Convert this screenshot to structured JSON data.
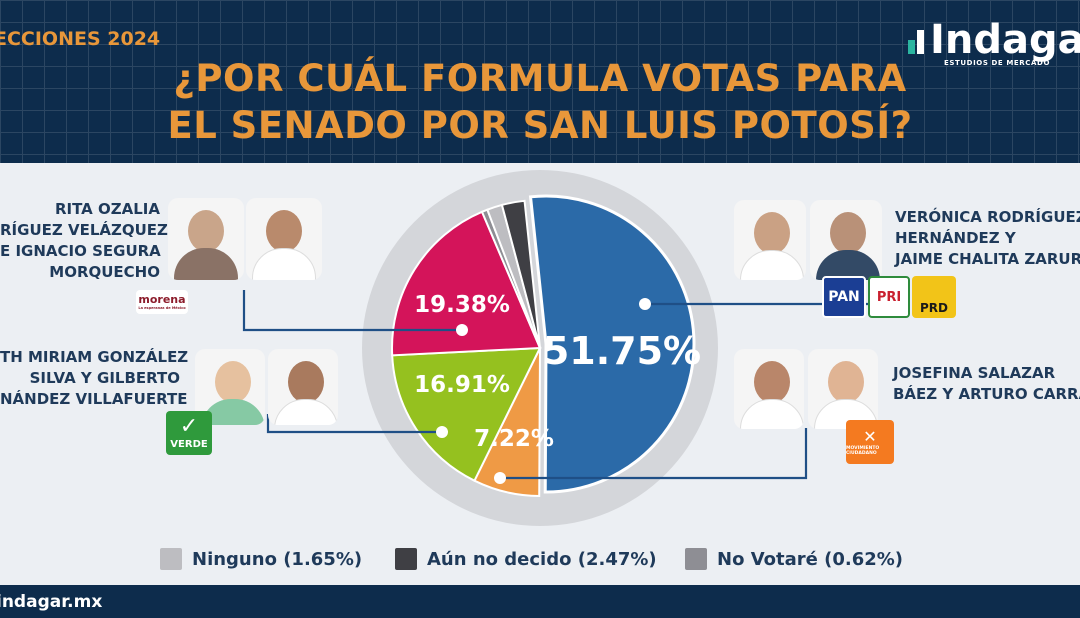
{
  "header": {
    "eyebrow": "ECCIONES 2024",
    "title_line1": "¿POR CUÁL FORMULA VOTAS PARA",
    "title_line2": "EL SENADO POR SAN LUIS POTOSÍ?",
    "logo_word": "Indagar",
    "logo_sub": "ESTUDIOS DE MERCADO"
  },
  "candidates": {
    "morena": {
      "line1": "RITA OZALIA",
      "line2": "RÍGUEZ VELÁZQUEZ",
      "line3": "E IGNACIO SEGURA",
      "line4": "MORQUECHO",
      "party": "morena",
      "party_tag": "La esperanza de México"
    },
    "verde": {
      "line1": "TH MIRIAM GONZÁLEZ",
      "line2": "SILVA Y GILBERTO",
      "line3": "NÁNDEZ VILLAFUERTE",
      "party": "VERDE"
    },
    "alianza": {
      "line1": "VERÓNICA RODRÍGUEZ",
      "line2": "HERNÁNDEZ Y",
      "line3": "JAIME CHALITA ZARUR",
      "parties": [
        "PAN",
        "PRI",
        "PRD"
      ]
    },
    "mc": {
      "line1": "JOSEFINA SALAZAR",
      "line2": "BÁEZ Y ARTURO CARRA",
      "party": "MOVIMIENTO CIUDADANO"
    }
  },
  "chart_data": {
    "type": "pie",
    "title": "¿POR CUÁL FORMULA VOTAS PARA EL SENADO POR SAN LUIS POTOSÍ?",
    "slices": [
      {
        "name": "Verónica Rodríguez Hernández y Jaime Chalita Zarur",
        "value": 51.75,
        "label": "51.75%",
        "color": "#2b6aa8"
      },
      {
        "name": "Josefina Salazar Báez y Arturo Carra",
        "value": 7.22,
        "label": "7.22%",
        "color": "#ef9a45"
      },
      {
        "name": "Miriam González Silva y Gilberto Hernández Villafuerte",
        "value": 16.91,
        "label": "16.91%",
        "color": "#95c11f"
      },
      {
        "name": "Rita Ozalia Rodríguez Velázquez e Ignacio Segura Morquecho",
        "value": 19.38,
        "label": "19.38%",
        "color": "#d4145a"
      },
      {
        "name": "No Votaré",
        "value": 0.62,
        "label": "",
        "color": "#8e8e94"
      },
      {
        "name": "Ninguno",
        "value": 1.65,
        "label": "",
        "color": "#bdbdc1"
      },
      {
        "name": "Aún no decido",
        "value": 2.47,
        "label": "",
        "color": "#3f3f44"
      }
    ],
    "legend": [
      {
        "label": "Ninguno (1.65%)",
        "color": "#bdbdc1"
      },
      {
        "label": "Aún no decido (2.47%)",
        "color": "#3f3f44"
      },
      {
        "label": "No Votaré (0.62%)",
        "color": "#8e8e94"
      }
    ],
    "legend_position": "bottom"
  },
  "footer": {
    "url": "indagar.mx"
  },
  "colors": {
    "navy": "#0d2c4c",
    "orange": "#e8973a",
    "text": "#1f3a5a",
    "ring": "#d4d6da"
  }
}
